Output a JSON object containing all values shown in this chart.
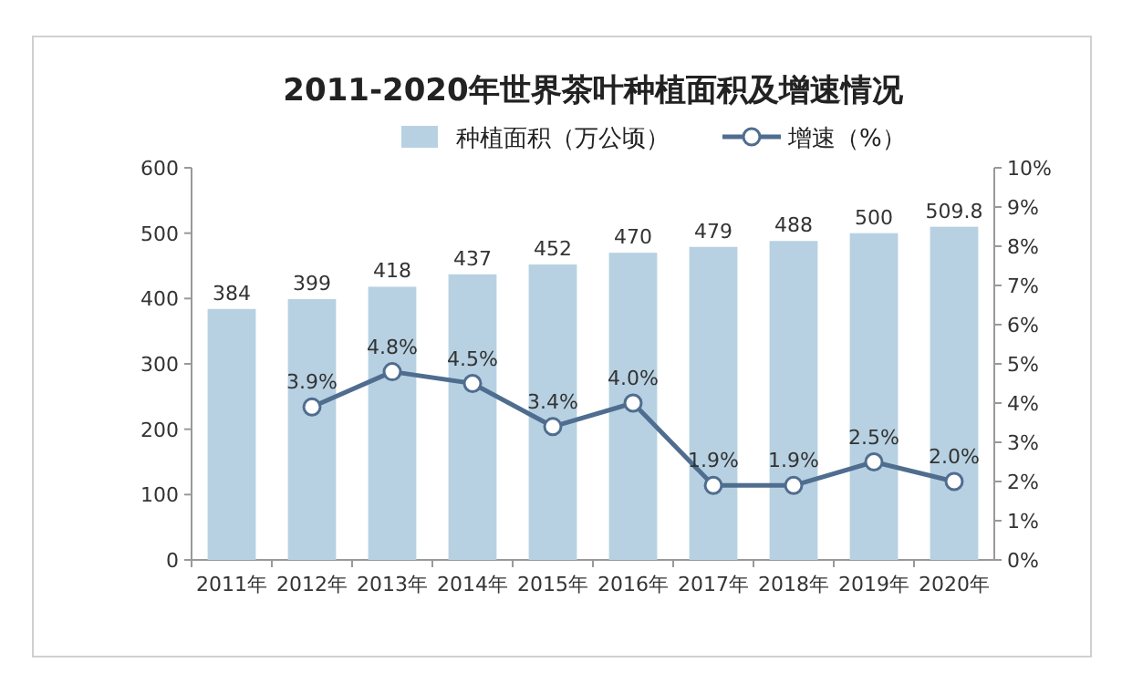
{
  "chart_data": {
    "type": "bar",
    "title": "2011-2020年世界茶叶种植面积及增速情况",
    "categories": [
      "2011年",
      "2012年",
      "2013年",
      "2014年",
      "2015年",
      "2016年",
      "2017年",
      "2018年",
      "2019年",
      "2020年"
    ],
    "series": [
      {
        "name": "种植面积（万公顷）",
        "color": "#b7d1e2",
        "values": [
          384,
          399,
          418,
          437,
          452,
          470,
          479,
          488,
          500,
          509.8
        ],
        "value_labels": [
          "384",
          "399",
          "418",
          "437",
          "452",
          "470",
          "479",
          "488",
          "500",
          "509.8"
        ]
      },
      {
        "name": "增速（%）",
        "type": "line",
        "axis": "y2",
        "color": "#4f6d8f",
        "marker": "circle",
        "values": [
          null,
          3.9,
          4.8,
          4.5,
          3.4,
          4.0,
          1.9,
          1.9,
          2.5,
          2.0
        ],
        "value_labels": [
          null,
          "3.9%",
          "4.8%",
          "4.5%",
          "3.4%",
          "4.0%",
          "1.9%",
          "1.9%",
          "2.5%",
          "2.0%"
        ]
      }
    ],
    "ylim": [
      0,
      600
    ],
    "yticks": [
      0,
      100,
      200,
      300,
      400,
      500,
      600
    ],
    "y2lim": [
      0,
      10
    ],
    "y2ticks": [
      {
        "value": 0,
        "label": "0%"
      },
      {
        "value": 1,
        "label": "1%"
      },
      {
        "value": 2,
        "label": "2%"
      },
      {
        "value": 3,
        "label": "3%"
      },
      {
        "value": 4,
        "label": "4%"
      },
      {
        "value": 5,
        "label": "5%"
      },
      {
        "value": 6,
        "label": "6%"
      },
      {
        "value": 7,
        "label": "7%"
      },
      {
        "value": 8,
        "label": "8%"
      },
      {
        "value": 9,
        "label": "9%"
      },
      {
        "value": 10,
        "label": "10%"
      }
    ],
    "legend": "top"
  }
}
